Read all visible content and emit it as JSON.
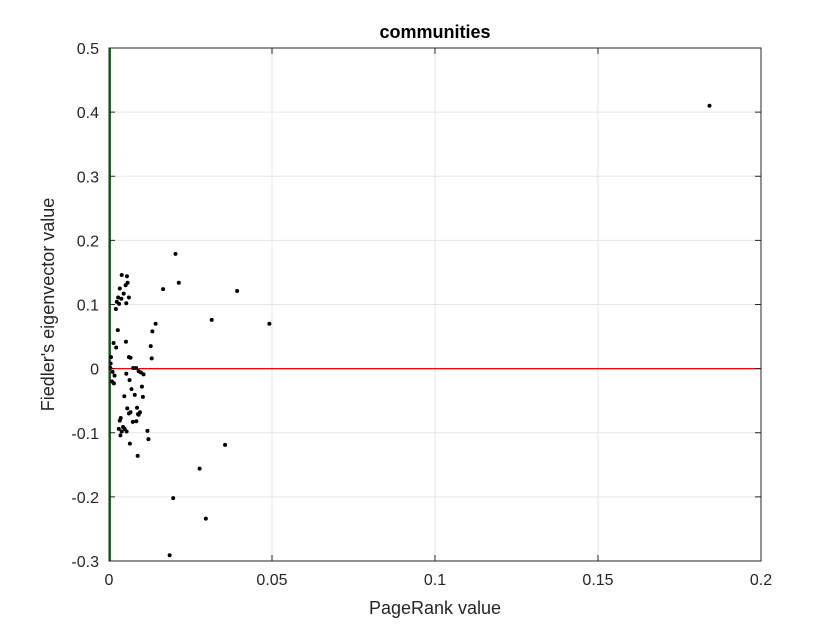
{
  "chart_data": {
    "type": "scatter",
    "title": "communities",
    "xlabel": "PageRank value",
    "ylabel": "Fiedler's eigenvector value",
    "xlim": [
      0,
      0.2
    ],
    "ylim": [
      -0.3,
      0.5
    ],
    "xticks": [
      0,
      0.05,
      0.1,
      0.15,
      0.2
    ],
    "xtick_labels": [
      "0",
      "0.05",
      "0.1",
      "0.15",
      "0.2"
    ],
    "yticks": [
      -0.3,
      -0.2,
      -0.1,
      0,
      0.1,
      0.2,
      0.3,
      0.4,
      0.5
    ],
    "ytick_labels": [
      "-0.3",
      "-0.2",
      "-0.1",
      "0",
      "0.1",
      "0.2",
      "0.3",
      "0.4",
      "0.5"
    ],
    "grid": true,
    "reference_lines": [
      {
        "orientation": "horizontal",
        "value": 0,
        "color": "#ff0000"
      },
      {
        "orientation": "vertical",
        "value": 0,
        "color": "#008000"
      }
    ],
    "points": [
      {
        "x": 0.1842,
        "y": 0.41
      },
      {
        "x": 0.0204,
        "y": 0.179
      },
      {
        "x": 0.0214,
        "y": 0.134
      },
      {
        "x": 0.0166,
        "y": 0.124
      },
      {
        "x": 0.0393,
        "y": 0.121
      },
      {
        "x": 0.0315,
        "y": 0.076
      },
      {
        "x": 0.0492,
        "y": 0.07
      },
      {
        "x": 0.0143,
        "y": 0.07
      },
      {
        "x": 0.0021,
        "y": 0.093
      },
      {
        "x": 0.0024,
        "y": 0.104
      },
      {
        "x": 0.0028,
        "y": 0.111
      },
      {
        "x": 0.0031,
        "y": 0.101
      },
      {
        "x": 0.0033,
        "y": 0.125
      },
      {
        "x": 0.0038,
        "y": 0.109
      },
      {
        "x": 0.0039,
        "y": 0.146
      },
      {
        "x": 0.0045,
        "y": 0.117
      },
      {
        "x": 0.0051,
        "y": 0.13
      },
      {
        "x": 0.0055,
        "y": 0.144
      },
      {
        "x": 0.0057,
        "y": 0.134
      },
      {
        "x": 0.0061,
        "y": 0.111
      },
      {
        "x": 0.0053,
        "y": 0.102
      },
      {
        "x": 0.0133,
        "y": 0.058
      },
      {
        "x": 0.0128,
        "y": 0.035
      },
      {
        "x": 0.0131,
        "y": 0.016
      },
      {
        "x": 0.0027,
        "y": 0.06
      },
      {
        "x": 0.0022,
        "y": 0.033
      },
      {
        "x": 0.0014,
        "y": 0.04
      },
      {
        "x": 0.0006,
        "y": 0.018
      },
      {
        "x": 0.0005,
        "y": 0.008
      },
      {
        "x": 0.0004,
        "y": 0.001
      },
      {
        "x": 0.0011,
        "y": -0.005
      },
      {
        "x": 0.0017,
        "y": -0.011
      },
      {
        "x": 0.0009,
        "y": -0.02
      },
      {
        "x": 0.0015,
        "y": -0.023
      },
      {
        "x": 0.0052,
        "y": 0.042
      },
      {
        "x": 0.0061,
        "y": 0.018
      },
      {
        "x": 0.0066,
        "y": 0.017
      },
      {
        "x": 0.0074,
        "y": 0.001
      },
      {
        "x": 0.0083,
        "y": 0.001
      },
      {
        "x": 0.0091,
        "y": -0.004
      },
      {
        "x": 0.0098,
        "y": -0.006
      },
      {
        "x": 0.0106,
        "y": -0.009
      },
      {
        "x": 0.0053,
        "y": -0.008
      },
      {
        "x": 0.0063,
        "y": -0.018
      },
      {
        "x": 0.0069,
        "y": -0.032
      },
      {
        "x": 0.0079,
        "y": -0.041
      },
      {
        "x": 0.0101,
        "y": -0.028
      },
      {
        "x": 0.0104,
        "y": -0.044
      },
      {
        "x": 0.0047,
        "y": -0.043
      },
      {
        "x": 0.0056,
        "y": -0.062
      },
      {
        "x": 0.0061,
        "y": -0.07
      },
      {
        "x": 0.0066,
        "y": -0.068
      },
      {
        "x": 0.0086,
        "y": -0.061
      },
      {
        "x": 0.0089,
        "y": -0.071
      },
      {
        "x": 0.0095,
        "y": -0.068
      },
      {
        "x": 0.0036,
        "y": -0.077
      },
      {
        "x": 0.0033,
        "y": -0.081
      },
      {
        "x": 0.003,
        "y": -0.094
      },
      {
        "x": 0.0043,
        "y": -0.091
      },
      {
        "x": 0.0039,
        "y": -0.098
      },
      {
        "x": 0.0035,
        "y": -0.104
      },
      {
        "x": 0.0048,
        "y": -0.094
      },
      {
        "x": 0.0054,
        "y": -0.098
      },
      {
        "x": 0.0073,
        "y": -0.083
      },
      {
        "x": 0.0084,
        "y": -0.082
      },
      {
        "x": 0.0091,
        "y": -0.072
      },
      {
        "x": 0.0118,
        "y": -0.097
      },
      {
        "x": 0.0121,
        "y": -0.11
      },
      {
        "x": 0.0064,
        "y": -0.117
      },
      {
        "x": 0.0088,
        "y": -0.136
      },
      {
        "x": 0.0356,
        "y": -0.119
      },
      {
        "x": 0.0278,
        "y": -0.156
      },
      {
        "x": 0.0197,
        "y": -0.202
      },
      {
        "x": 0.0297,
        "y": -0.234
      },
      {
        "x": 0.0186,
        "y": -0.291
      }
    ]
  }
}
